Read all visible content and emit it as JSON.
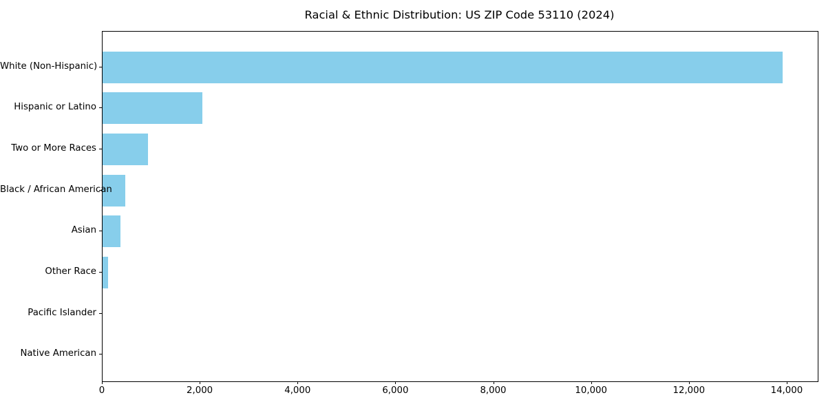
{
  "title": "Racial & Ethnic Distribution: US ZIP Code 53110 (2024)",
  "chart_data": {
    "type": "bar",
    "orientation": "horizontal",
    "title": "Racial & Ethnic Distribution: US ZIP Code 53110 (2024)",
    "categories": [
      "White (Non-Hispanic)",
      "Hispanic or Latino",
      "Two or More Races",
      "Black / African American",
      "Asian",
      "Other Race",
      "Pacific Islander",
      "Native American"
    ],
    "values": [
      13900,
      2040,
      930,
      470,
      365,
      110,
      0,
      0
    ],
    "xlabel": "",
    "ylabel": "",
    "xlim": [
      0,
      14620
    ],
    "xticks": [
      0,
      2000,
      4000,
      6000,
      8000,
      10000,
      12000,
      14000
    ],
    "xtick_labels": [
      "0",
      "2,000",
      "4,000",
      "6,000",
      "8,000",
      "10,000",
      "12,000",
      "14,000"
    ],
    "bar_color": "#87CEEB",
    "spine_color": "#000000",
    "grid": false,
    "legend": null
  }
}
